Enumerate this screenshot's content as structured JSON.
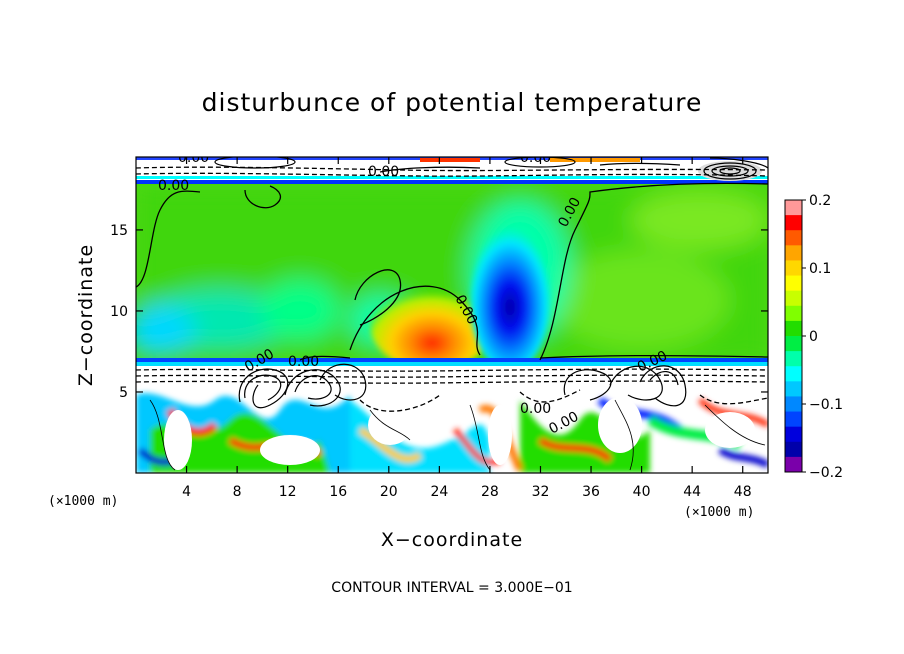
{
  "chart_data": {
    "type": "heatmap",
    "title": "disturbunce of potential temperature",
    "xlabel": "X−coordinate",
    "ylabel": "Z−coordinate",
    "x_unit_label": "(×1000 m)",
    "y_unit_label": "(×1000 m)",
    "xlim": [
      0,
      50
    ],
    "ylim": [
      0,
      19.5
    ],
    "x_ticks": [
      4,
      8,
      12,
      16,
      20,
      24,
      28,
      32,
      36,
      40,
      44,
      48
    ],
    "x_tick_labels": [
      "4",
      "8",
      "12",
      "16",
      "20",
      "24",
      "28",
      "32",
      "36",
      "40",
      "44",
      "48"
    ],
    "y_ticks": [
      5,
      10,
      15
    ],
    "y_tick_labels": [
      "5",
      "10",
      "15"
    ],
    "colorbar": {
      "range": [
        -0.2,
        0.2
      ],
      "ticks": [
        0.2,
        0.1,
        0,
        -0.1,
        -0.2
      ],
      "tick_labels": [
        "0.2",
        "0.1",
        "0",
        "−0.1",
        "−0.2"
      ],
      "colors": [
        "#ff9999",
        "#ff0000",
        "#ff5a00",
        "#ffa500",
        "#ffd700",
        "#ffff00",
        "#c8ff00",
        "#80ff00",
        "#22dd00",
        "#00ee44",
        "#00ffaa",
        "#00ffff",
        "#00c8ff",
        "#0088ff",
        "#0044ff",
        "#0000dd",
        "#0000aa",
        "#7a00aa"
      ]
    },
    "contour_interval_text": "CONTOUR INTERVAL = 3.000E−01",
    "contour_labels": [
      "0.00",
      "0.00",
      "0.00",
      "0.00",
      "0.00",
      "0.00",
      "0.00",
      "0.00",
      "0.00",
      "0.00",
      "0.00"
    ],
    "tropopause_height": 7,
    "model_top_layer": 18.5,
    "features": [
      {
        "name": "warm anomaly",
        "x": 23,
        "z": 7.8,
        "value": 0.14
      },
      {
        "name": "cold anomaly",
        "x": 29.5,
        "z": 9,
        "value": -0.18
      }
    ]
  }
}
